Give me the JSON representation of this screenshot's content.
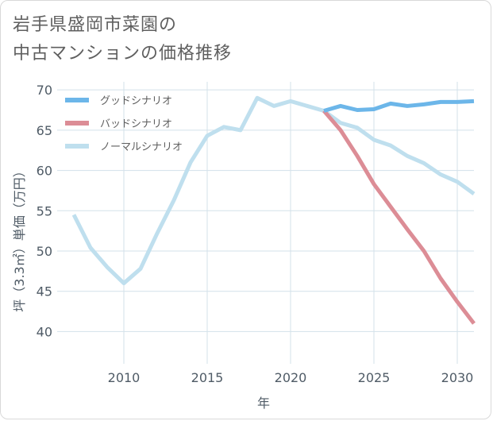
{
  "title_lines": [
    "岩手県盛岡市菜園の",
    "中古マンションの価格推移"
  ],
  "chart_data": {
    "type": "line",
    "title": "岩手県盛岡市菜園の中古マンションの価格推移",
    "xlabel": "年",
    "ylabel": "坪（3.3㎡）単価（万円）",
    "xlim": [
      2006,
      2031
    ],
    "ylim": [
      36,
      71
    ],
    "x_ticks": [
      2010,
      2015,
      2020,
      2025,
      2030
    ],
    "y_ticks": [
      40,
      45,
      50,
      55,
      60,
      65,
      70
    ],
    "grid": true,
    "legend_position": "top-left",
    "series": [
      {
        "name": "グッドシナリオ",
        "color": "#6cb6e9",
        "x": [
          2022,
          2023,
          2024,
          2025,
          2026,
          2027,
          2028,
          2029,
          2030,
          2031
        ],
        "values": [
          67.4,
          68.0,
          67.5,
          67.6,
          68.3,
          68.0,
          68.2,
          68.5,
          68.5,
          68.6
        ]
      },
      {
        "name": "バッドシナリオ",
        "color": "#dc8d96",
        "x": [
          2022,
          2023,
          2024,
          2025,
          2026,
          2027,
          2028,
          2029,
          2030,
          2031
        ],
        "values": [
          67.4,
          65.0,
          61.8,
          58.3,
          55.5,
          52.7,
          50.0,
          46.6,
          43.7,
          41.0
        ]
      },
      {
        "name": "ノーマルシナリオ",
        "color": "#bfdfee",
        "x": [
          2007,
          2008,
          2009,
          2010,
          2011,
          2012,
          2013,
          2014,
          2015,
          2016,
          2017,
          2018,
          2019,
          2020,
          2021,
          2022,
          2023,
          2024,
          2025,
          2026,
          2027,
          2028,
          2029,
          2030,
          2031
        ],
        "values": [
          54.5,
          50.4,
          48.0,
          46.0,
          47.8,
          52.2,
          56.3,
          61.0,
          64.3,
          65.4,
          65.0,
          69.0,
          68.0,
          68.6,
          68.0,
          67.4,
          65.9,
          65.3,
          63.8,
          63.1,
          61.8,
          60.9,
          59.5,
          58.6,
          57.1
        ]
      }
    ]
  }
}
